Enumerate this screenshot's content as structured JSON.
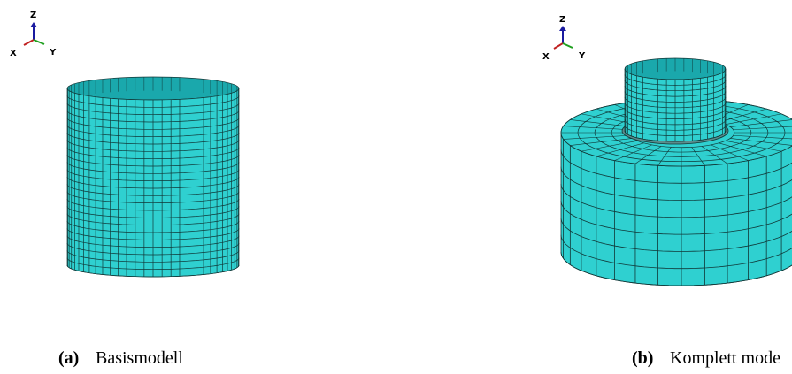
{
  "figure": {
    "panels": [
      {
        "triad": {
          "z": "Z",
          "x": "X",
          "y": "Y"
        },
        "label": "(a)",
        "caption": "Basismodell"
      },
      {
        "triad": {
          "z": "Z",
          "x": "X",
          "y": "Y"
        },
        "label": "(b)",
        "caption": "Komplett mode"
      }
    ]
  }
}
